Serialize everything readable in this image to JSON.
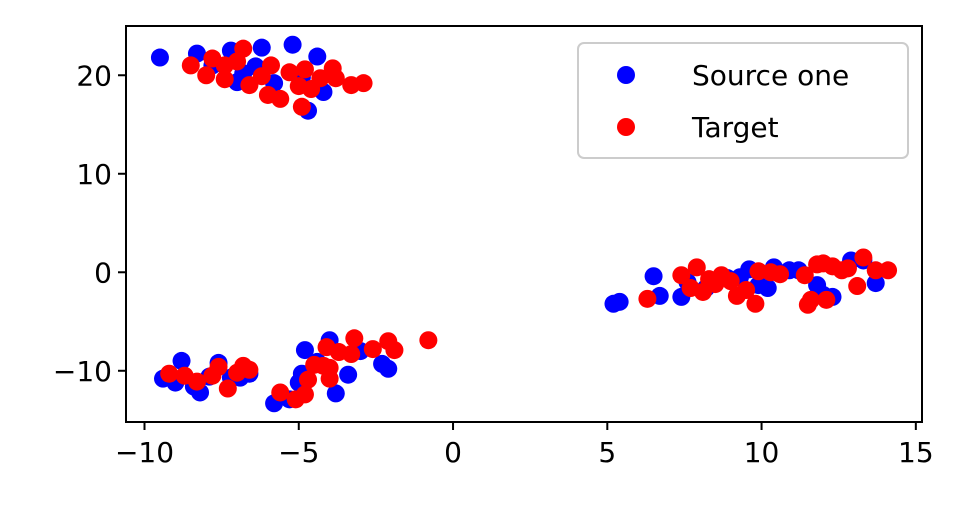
{
  "chart_data": {
    "type": "scatter",
    "title": "",
    "xlabel": "",
    "ylabel": "",
    "xlim": [
      -10.6,
      15.2
    ],
    "ylim": [
      -15.2,
      25
    ],
    "xticks": [
      -10,
      -5,
      0,
      5,
      10,
      15
    ],
    "yticks": [
      -10,
      0,
      10,
      20
    ],
    "xtick_labels": [
      "−10",
      "−5",
      "0",
      "5",
      "10",
      "15"
    ],
    "ytick_labels": [
      "−10",
      "0",
      "10",
      "20"
    ],
    "grid": false,
    "legend_position": "upper right",
    "series": [
      {
        "name": "Source one",
        "color": "#0000ff",
        "points": [
          [
            -9.5,
            21.8
          ],
          [
            -8.3,
            22.2
          ],
          [
            -7.2,
            22.5
          ],
          [
            -6.2,
            22.8
          ],
          [
            -5.2,
            23.1
          ],
          [
            -4.4,
            21.9
          ],
          [
            -7.8,
            21.0
          ],
          [
            -6.8,
            20.2
          ],
          [
            -5.8,
            19.2
          ],
          [
            -4.9,
            19.8
          ],
          [
            -7.0,
            19.3
          ],
          [
            -4.2,
            18.3
          ],
          [
            -4.7,
            16.4
          ],
          [
            -6.4,
            20.9
          ],
          [
            -9.4,
            -10.8
          ],
          [
            -9.0,
            -11.2
          ],
          [
            -8.8,
            -9.0
          ],
          [
            -8.4,
            -11.6
          ],
          [
            -8.2,
            -12.2
          ],
          [
            -7.9,
            -10.6
          ],
          [
            -7.6,
            -9.2
          ],
          [
            -7.2,
            -10.7
          ],
          [
            -6.9,
            -10.7
          ],
          [
            -6.6,
            -10.3
          ],
          [
            -5.8,
            -13.3
          ],
          [
            -5.3,
            -12.9
          ],
          [
            -5.0,
            -11.2
          ],
          [
            -4.9,
            -10.3
          ],
          [
            -4.8,
            -7.9
          ],
          [
            -4.4,
            -9.1
          ],
          [
            -4.0,
            -6.9
          ],
          [
            -3.8,
            -12.3
          ],
          [
            -3.4,
            -10.4
          ],
          [
            -2.1,
            -9.8
          ],
          [
            -2.3,
            -9.3
          ],
          [
            -3.0,
            -8.0
          ],
          [
            5.2,
            -3.2
          ],
          [
            5.4,
            -3.0
          ],
          [
            6.5,
            -0.4
          ],
          [
            6.7,
            -2.4
          ],
          [
            7.4,
            -2.5
          ],
          [
            7.6,
            -1.0
          ],
          [
            8.2,
            -1.6
          ],
          [
            8.9,
            -0.6
          ],
          [
            9.3,
            -0.5
          ],
          [
            9.6,
            0.3
          ],
          [
            9.9,
            -1.3
          ],
          [
            10.2,
            -1.6
          ],
          [
            10.4,
            0.5
          ],
          [
            10.9,
            0.2
          ],
          [
            11.2,
            0.2
          ],
          [
            11.8,
            -1.3
          ],
          [
            12.0,
            -2.3
          ],
          [
            12.3,
            -2.5
          ],
          [
            12.9,
            1.2
          ],
          [
            13.3,
            1.2
          ],
          [
            13.7,
            -1.1
          ]
        ]
      },
      {
        "name": "Target",
        "color": "#ff0000",
        "points": [
          [
            -8.5,
            21.0
          ],
          [
            -8.0,
            20.0
          ],
          [
            -7.8,
            21.7
          ],
          [
            -7.4,
            21.0
          ],
          [
            -7.0,
            21.4
          ],
          [
            -6.8,
            22.7
          ],
          [
            -6.6,
            19.0
          ],
          [
            -6.2,
            19.9
          ],
          [
            -5.9,
            21.0
          ],
          [
            -5.6,
            17.6
          ],
          [
            -5.3,
            20.3
          ],
          [
            -5.0,
            18.9
          ],
          [
            -4.8,
            20.6
          ],
          [
            -4.6,
            18.6
          ],
          [
            -4.3,
            19.7
          ],
          [
            -3.9,
            20.7
          ],
          [
            -3.8,
            19.7
          ],
          [
            -3.3,
            19.0
          ],
          [
            -2.9,
            19.2
          ],
          [
            -4.9,
            16.8
          ],
          [
            -7.4,
            19.6
          ],
          [
            -6.0,
            18.0
          ],
          [
            -9.2,
            -10.3
          ],
          [
            -8.7,
            -10.5
          ],
          [
            -8.3,
            -11.1
          ],
          [
            -7.8,
            -10.5
          ],
          [
            -7.6,
            -9.6
          ],
          [
            -7.3,
            -11.8
          ],
          [
            -7.0,
            -10.2
          ],
          [
            -6.8,
            -9.5
          ],
          [
            -6.6,
            -9.9
          ],
          [
            -5.6,
            -12.2
          ],
          [
            -5.1,
            -12.9
          ],
          [
            -4.8,
            -12.4
          ],
          [
            -4.7,
            -10.9
          ],
          [
            -4.5,
            -9.4
          ],
          [
            -4.2,
            -9.5
          ],
          [
            -4.0,
            -10.8
          ],
          [
            -4.0,
            -9.7
          ],
          [
            -3.7,
            -8.1
          ],
          [
            -3.3,
            -8.3
          ],
          [
            -3.2,
            -6.7
          ],
          [
            -2.6,
            -7.8
          ],
          [
            -2.1,
            -7.0
          ],
          [
            -1.9,
            -7.9
          ],
          [
            -0.8,
            -6.9
          ],
          [
            -4.1,
            -7.6
          ],
          [
            6.3,
            -2.7
          ],
          [
            7.4,
            -0.3
          ],
          [
            7.7,
            -1.6
          ],
          [
            7.9,
            0.5
          ],
          [
            8.1,
            -2.0
          ],
          [
            8.3,
            -0.7
          ],
          [
            8.5,
            -1.2
          ],
          [
            8.7,
            -0.3
          ],
          [
            9.0,
            -0.9
          ],
          [
            9.2,
            -2.4
          ],
          [
            9.5,
            -1.8
          ],
          [
            9.8,
            -3.2
          ],
          [
            9.9,
            0.1
          ],
          [
            10.3,
            0.0
          ],
          [
            10.6,
            -0.2
          ],
          [
            11.4,
            -0.3
          ],
          [
            11.5,
            -3.3
          ],
          [
            11.6,
            -2.8
          ],
          [
            11.8,
            0.8
          ],
          [
            12.1,
            -2.8
          ],
          [
            12.3,
            0.6
          ],
          [
            12.6,
            0.2
          ],
          [
            12.8,
            0.4
          ],
          [
            13.1,
            -1.4
          ],
          [
            13.3,
            1.5
          ],
          [
            13.7,
            0.2
          ],
          [
            14.1,
            0.2
          ],
          [
            12.0,
            0.9
          ]
        ]
      }
    ]
  }
}
